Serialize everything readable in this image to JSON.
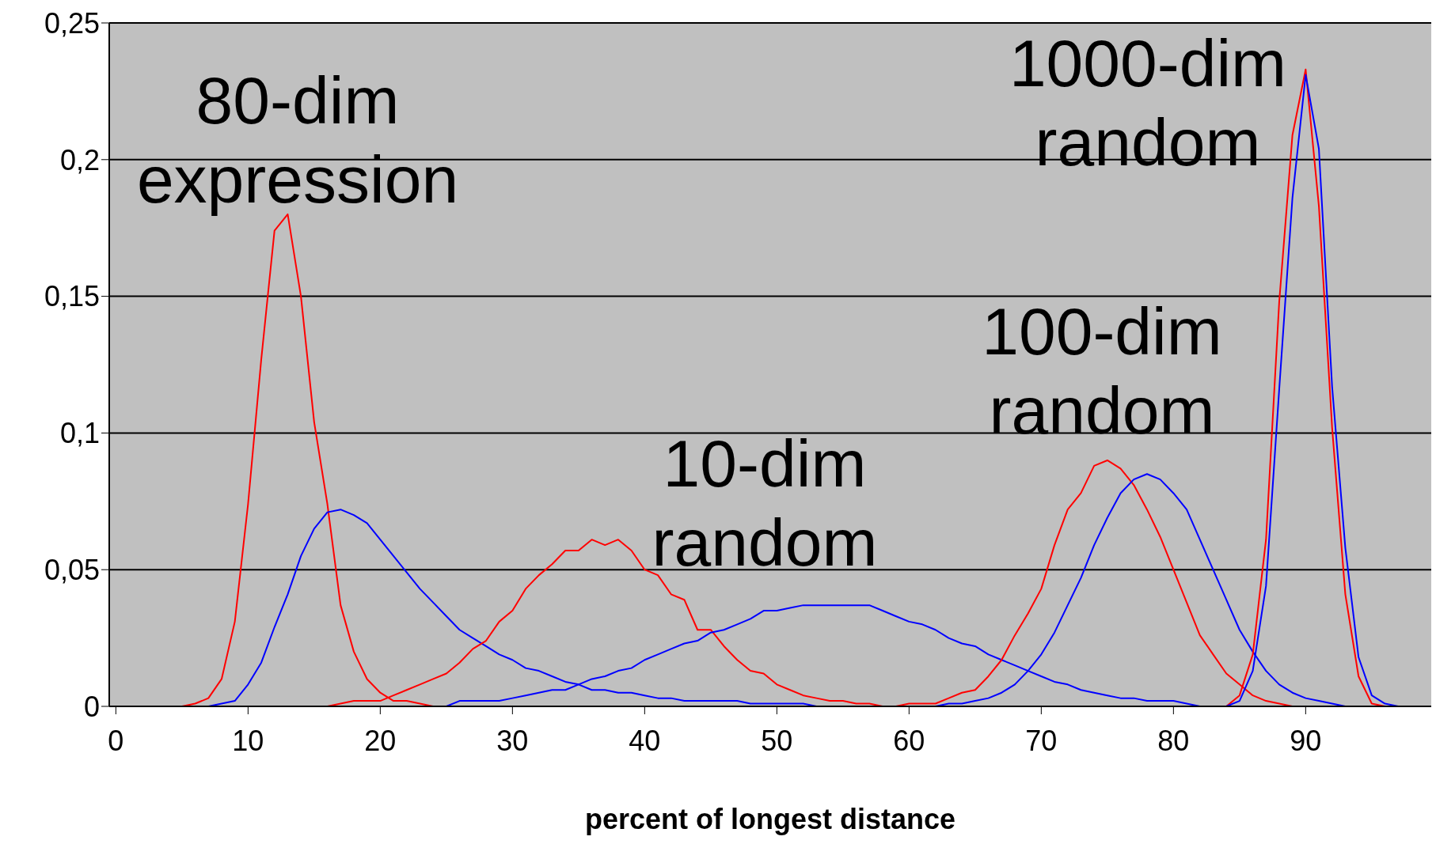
{
  "chart_data": {
    "type": "line",
    "xlabel": "percent of longest distance",
    "xlim": [
      -0.5,
      99.5
    ],
    "xticks": [
      0,
      10,
      20,
      30,
      40,
      50,
      60,
      70,
      80,
      90
    ],
    "ylim": [
      0,
      0.25
    ],
    "yticks": [
      {
        "value": 0,
        "label": "0"
      },
      {
        "value": 0.05,
        "label": "0,05"
      },
      {
        "value": 0.1,
        "label": "0,1"
      },
      {
        "value": 0.15,
        "label": "0,15"
      },
      {
        "value": 0.2,
        "label": "0,2"
      },
      {
        "value": 0.25,
        "label": "0,25"
      }
    ],
    "grid": "y",
    "legend": false,
    "annotations": [
      "80-dim expression",
      "10-dim random",
      "100-dim random",
      "1000-dim random"
    ],
    "series": [
      {
        "color": "#ff0000",
        "x": [
          5,
          6,
          7,
          8,
          9,
          10,
          11,
          12,
          13,
          14,
          15,
          16,
          17,
          18,
          19,
          20,
          21,
          22,
          23,
          24
        ],
        "values": [
          0,
          0.001,
          0.003,
          0.01,
          0.031,
          0.074,
          0.127,
          0.174,
          0.18,
          0.15,
          0.104,
          0.074,
          0.037,
          0.02,
          0.01,
          0.005,
          0.002,
          0.002,
          0.001,
          0
        ]
      },
      {
        "color": "#0000ff",
        "x": [
          7,
          8,
          9,
          10,
          11,
          12,
          13,
          14,
          15,
          16,
          17,
          18,
          19,
          20,
          21,
          22,
          23,
          24,
          25,
          26,
          27,
          28,
          29,
          30,
          31,
          32,
          33,
          34,
          35,
          36,
          37,
          38,
          39,
          40,
          41,
          42,
          43,
          44,
          45,
          46,
          47,
          48,
          49,
          50,
          51,
          52,
          53
        ],
        "values": [
          0,
          0.001,
          0.002,
          0.008,
          0.016,
          0.029,
          0.041,
          0.055,
          0.065,
          0.071,
          0.072,
          0.07,
          0.067,
          0.061,
          0.055,
          0.049,
          0.043,
          0.038,
          0.033,
          0.028,
          0.025,
          0.022,
          0.019,
          0.017,
          0.014,
          0.013,
          0.011,
          0.009,
          0.008,
          0.006,
          0.006,
          0.005,
          0.005,
          0.004,
          0.003,
          0.003,
          0.002,
          0.002,
          0.002,
          0.002,
          0.002,
          0.001,
          0.001,
          0.001,
          0.001,
          0.001,
          0
        ]
      },
      {
        "color": "#ff0000",
        "x": [
          16,
          17,
          18,
          19,
          20,
          21,
          22,
          23,
          24,
          25,
          26,
          27,
          28,
          29,
          30,
          31,
          32,
          33,
          34,
          35,
          36,
          37,
          38,
          39,
          40,
          41,
          42,
          43,
          44,
          45,
          46,
          47,
          48,
          49,
          50,
          51,
          52,
          53,
          54,
          55,
          56,
          57,
          58
        ],
        "values": [
          0,
          0.001,
          0.002,
          0.002,
          0.002,
          0.004,
          0.006,
          0.008,
          0.01,
          0.012,
          0.016,
          0.021,
          0.024,
          0.031,
          0.035,
          0.043,
          0.048,
          0.052,
          0.057,
          0.057,
          0.061,
          0.059,
          0.061,
          0.057,
          0.05,
          0.048,
          0.041,
          0.039,
          0.028,
          0.028,
          0.022,
          0.017,
          0.013,
          0.012,
          0.008,
          0.006,
          0.004,
          0.003,
          0.002,
          0.002,
          0.001,
          0.001,
          0
        ]
      },
      {
        "color": "#0000ff",
        "x": [
          25,
          26,
          27,
          28,
          29,
          30,
          31,
          32,
          33,
          34,
          35,
          36,
          37,
          38,
          39,
          40,
          41,
          42,
          43,
          44,
          45,
          46,
          47,
          48,
          49,
          50,
          51,
          52,
          53,
          54,
          55,
          56,
          57,
          58,
          59,
          60,
          61,
          62,
          63,
          64,
          65,
          66,
          67,
          68,
          69,
          70,
          71,
          72,
          73,
          74,
          75,
          76,
          77,
          78,
          79,
          80,
          81,
          82
        ],
        "values": [
          0,
          0.002,
          0.002,
          0.002,
          0.002,
          0.003,
          0.004,
          0.005,
          0.006,
          0.006,
          0.008,
          0.01,
          0.011,
          0.013,
          0.014,
          0.017,
          0.019,
          0.021,
          0.023,
          0.024,
          0.027,
          0.028,
          0.03,
          0.032,
          0.035,
          0.035,
          0.036,
          0.037,
          0.037,
          0.037,
          0.037,
          0.037,
          0.037,
          0.035,
          0.033,
          0.031,
          0.03,
          0.028,
          0.025,
          0.023,
          0.022,
          0.019,
          0.017,
          0.015,
          0.013,
          0.011,
          0.009,
          0.008,
          0.006,
          0.005,
          0.004,
          0.003,
          0.003,
          0.002,
          0.002,
          0.002,
          0.001,
          0
        ]
      },
      {
        "color": "#ff0000",
        "x": [
          59,
          60,
          61,
          62,
          63,
          64,
          65,
          66,
          67,
          68,
          69,
          70,
          71,
          72,
          73,
          74,
          75,
          76,
          77,
          78,
          79,
          80,
          81,
          82,
          83,
          84,
          85,
          86,
          87,
          88,
          89
        ],
        "values": [
          0,
          0.001,
          0.001,
          0.001,
          0.003,
          0.005,
          0.006,
          0.011,
          0.017,
          0.026,
          0.034,
          0.043,
          0.059,
          0.072,
          0.078,
          0.088,
          0.09,
          0.087,
          0.081,
          0.072,
          0.062,
          0.05,
          0.038,
          0.026,
          0.019,
          0.012,
          0.008,
          0.004,
          0.002,
          0.001,
          0
        ]
      },
      {
        "color": "#0000ff",
        "x": [
          62,
          63,
          64,
          65,
          66,
          67,
          68,
          69,
          70,
          71,
          72,
          73,
          74,
          75,
          76,
          77,
          78,
          79,
          80,
          81,
          82,
          83,
          84,
          85,
          86,
          87,
          88,
          89,
          90,
          91,
          92,
          93
        ],
        "values": [
          0,
          0.001,
          0.001,
          0.002,
          0.003,
          0.005,
          0.008,
          0.013,
          0.019,
          0.027,
          0.037,
          0.047,
          0.059,
          0.069,
          0.078,
          0.083,
          0.085,
          0.083,
          0.078,
          0.072,
          0.061,
          0.05,
          0.039,
          0.028,
          0.02,
          0.013,
          0.008,
          0.005,
          0.003,
          0.002,
          0.001,
          0
        ]
      },
      {
        "color": "#ff0000",
        "x": [
          84,
          85,
          86,
          87,
          88,
          89,
          90,
          91,
          92,
          93,
          94,
          95,
          96
        ],
        "values": [
          0,
          0.004,
          0.019,
          0.061,
          0.148,
          0.209,
          0.233,
          0.183,
          0.102,
          0.041,
          0.011,
          0.001,
          0
        ]
      },
      {
        "color": "#0000ff",
        "x": [
          84,
          85,
          86,
          87,
          88,
          89,
          90,
          91,
          92,
          93,
          94,
          95,
          96,
          97
        ],
        "values": [
          0,
          0.002,
          0.013,
          0.044,
          0.116,
          0.186,
          0.231,
          0.204,
          0.117,
          0.058,
          0.018,
          0.004,
          0.001,
          0
        ]
      }
    ]
  }
}
